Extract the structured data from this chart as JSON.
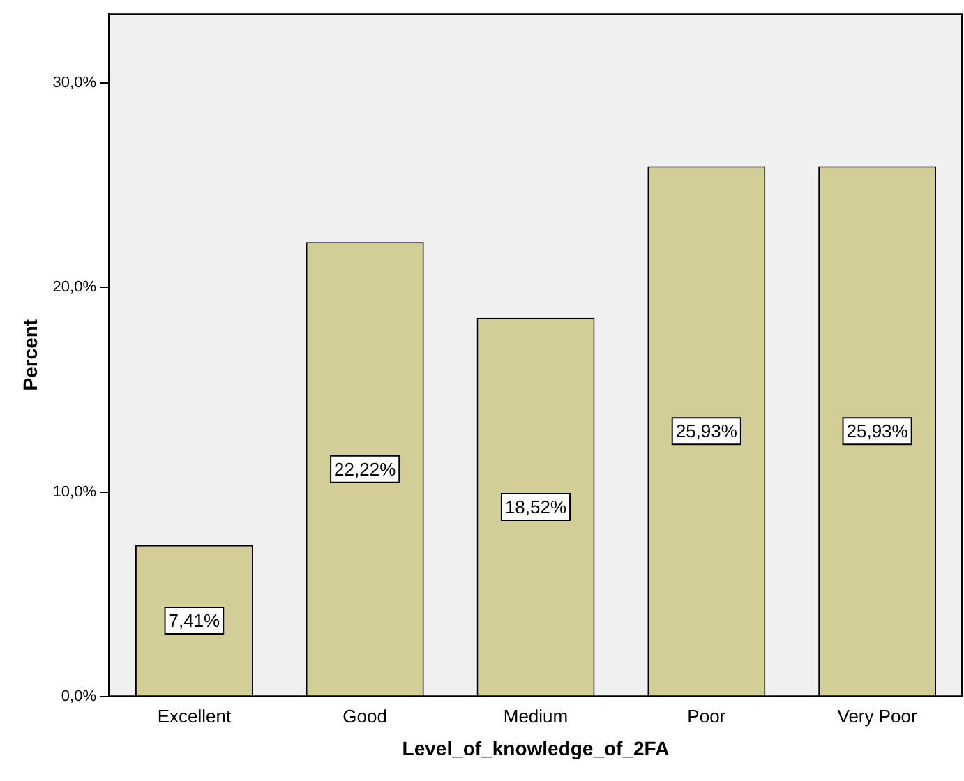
{
  "chart_data": {
    "type": "bar",
    "xlabel": "Level_of_knowledge_of_2FA",
    "ylabel": "Percent",
    "categories": [
      "Excellent",
      "Good",
      "Medium",
      "Poor",
      "Very Poor"
    ],
    "values": [
      7.41,
      22.22,
      18.52,
      25.93,
      25.93
    ],
    "value_labels": [
      "7,41%",
      "22,22%",
      "18,52%",
      "25,93%",
      "25,93%"
    ],
    "color": "#d3ce97",
    "ylim": [
      0,
      33.4
    ],
    "yticks": [
      {
        "value": 0,
        "label": "0,0%"
      },
      {
        "value": 10,
        "label": "10,0%"
      },
      {
        "value": 20,
        "label": "20,0%"
      },
      {
        "value": 30,
        "label": "30,0%"
      }
    ],
    "grid": false,
    "legend": false
  }
}
